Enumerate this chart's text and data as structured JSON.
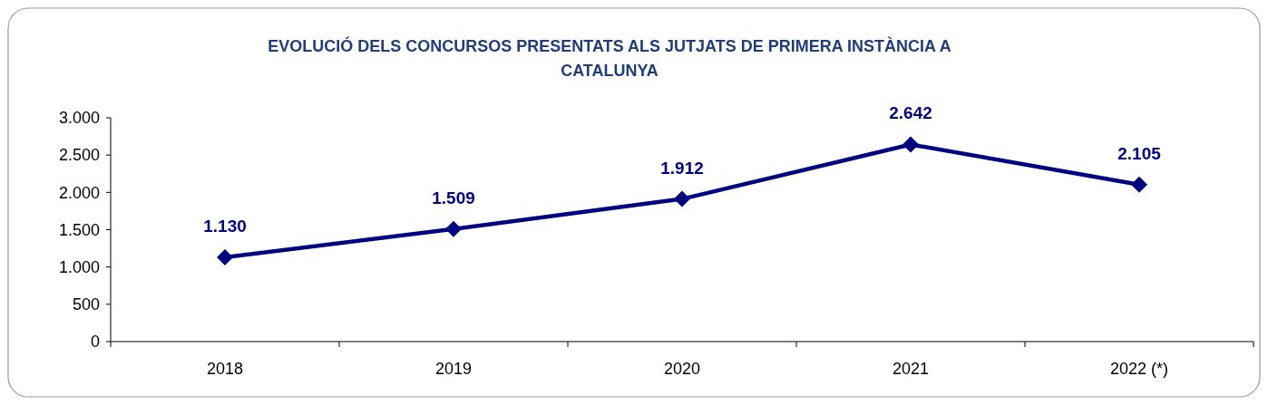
{
  "chart_data": {
    "type": "line",
    "title": "EVOLUCIÓ DELS CONCURSOS PRESENTATS ALS JUTJATS DE PRIMERA INSTÀNCIA A CATALUNYA",
    "categories": [
      "2018",
      "2019",
      "2020",
      "2021",
      "2022 (*)"
    ],
    "series": [
      {
        "color": "#000080",
        "values": [
          1130,
          1509,
          1912,
          2642,
          2105
        ],
        "value_labels": [
          "1.130",
          "1.509",
          "1.912",
          "2.642",
          "2.105"
        ]
      }
    ],
    "ylim": [
      0,
      3000
    ],
    "yticks": [
      {
        "value": 0,
        "label": "0"
      },
      {
        "value": 500,
        "label": "500"
      },
      {
        "value": 1000,
        "label": "1.000"
      },
      {
        "value": 1500,
        "label": "1.500"
      },
      {
        "value": 2000,
        "label": "2.000"
      },
      {
        "value": 2500,
        "label": "2.500"
      },
      {
        "value": 3000,
        "label": "3.000"
      }
    ],
    "grid": false,
    "marker": "diamond",
    "line_style": "solid"
  }
}
